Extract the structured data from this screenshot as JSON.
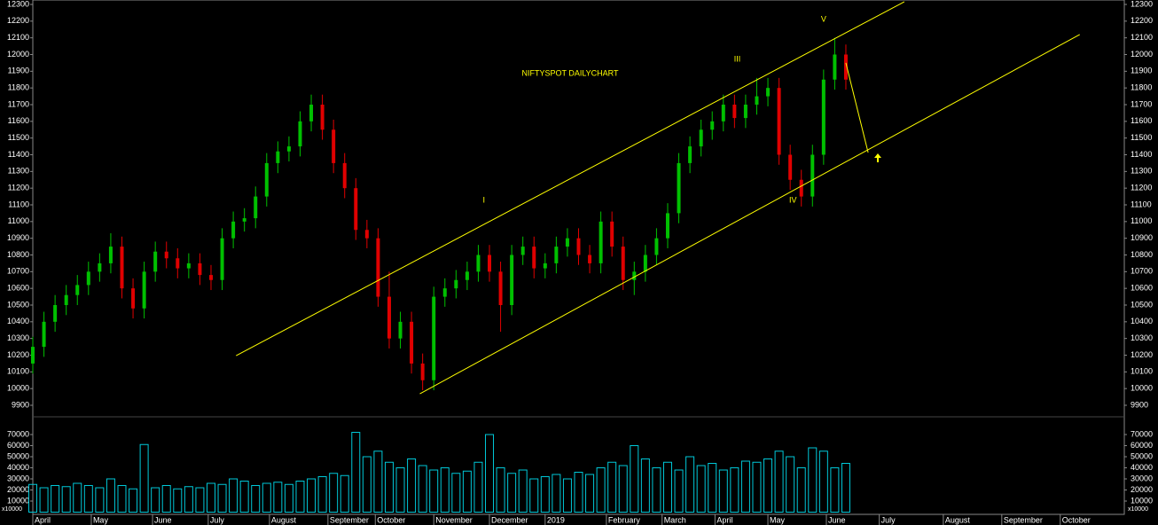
{
  "chart_data": {
    "type": "ohlc",
    "title": "NIFTYSPOT DAILYCHART",
    "x": [
      0,
      4,
      8,
      12,
      16,
      20,
      24,
      28,
      32,
      36,
      40,
      44,
      48,
      52,
      56,
      60,
      64,
      68,
      72,
      76,
      80,
      84,
      88,
      92,
      96,
      100,
      104,
      108,
      112,
      116,
      120,
      124,
      128,
      132,
      136,
      140,
      144,
      148,
      152,
      156,
      160,
      164,
      168,
      172,
      176,
      180,
      184,
      188,
      192,
      196,
      200,
      204,
      208,
      212,
      216,
      220,
      224,
      228,
      232,
      236,
      240,
      244,
      248,
      252,
      256,
      260,
      264,
      268,
      272,
      276,
      280,
      284,
      288,
      292
    ],
    "open": [
      10150,
      10250,
      10400,
      10500,
      10560,
      10620,
      10700,
      10750,
      10850,
      10600,
      10480,
      10700,
      10820,
      10780,
      10720,
      10750,
      10680,
      10650,
      10900,
      11000,
      11020,
      11150,
      11350,
      11420,
      11450,
      11600,
      11700,
      11550,
      11350,
      11200,
      10950,
      10900,
      10550,
      10300,
      10400,
      10150,
      10050,
      10550,
      10600,
      10650,
      10700,
      10800,
      10700,
      10500,
      10800,
      10850,
      10720,
      10750,
      10850,
      10900,
      10800,
      10750,
      11000,
      10850,
      10650,
      10700,
      10800,
      10900,
      11050,
      11350,
      11450,
      11550,
      11600,
      11700,
      11620,
      11700,
      11750,
      11800,
      11400,
      11250,
      11150,
      11400,
      11850,
      12000
    ],
    "high": [
      10310,
      10460,
      10560,
      10620,
      10680,
      10760,
      10810,
      10930,
      10910,
      10660,
      10760,
      10880,
      10880,
      10840,
      10810,
      10810,
      10740,
      10960,
      11060,
      11080,
      11210,
      11410,
      11480,
      11510,
      11660,
      11760,
      11760,
      11610,
      11410,
      11260,
      11010,
      10960,
      10700,
      10460,
      10460,
      10210,
      10610,
      10660,
      10710,
      10760,
      10860,
      10860,
      10760,
      10860,
      10910,
      10910,
      10810,
      10910,
      10960,
      10960,
      10860,
      11060,
      11060,
      10910,
      10760,
      10860,
      10960,
      11110,
      11410,
      11510,
      11610,
      11660,
      11760,
      11760,
      11760,
      11860,
      11860,
      11860,
      11460,
      11310,
      11460,
      11910,
      12100,
      12060
    ],
    "low": [
      10090,
      10190,
      10340,
      10440,
      10500,
      10560,
      10640,
      10690,
      10540,
      10420,
      10420,
      10640,
      10720,
      10660,
      10660,
      10620,
      10590,
      10590,
      10840,
      10940,
      10960,
      11090,
      11290,
      11360,
      11390,
      11540,
      11490,
      11290,
      11140,
      10890,
      10840,
      10490,
      10240,
      10240,
      10090,
      9990,
      9990,
      10490,
      10540,
      10590,
      10640,
      10640,
      10340,
      10440,
      10740,
      10660,
      10660,
      10690,
      10790,
      10740,
      10690,
      10690,
      10790,
      10590,
      10560,
      10640,
      10740,
      10840,
      10990,
      11290,
      11390,
      11490,
      11540,
      11560,
      11560,
      11640,
      11690,
      11340,
      11190,
      11090,
      11090,
      11340,
      11790,
      11790
    ],
    "close": [
      10250,
      10400,
      10500,
      10560,
      10620,
      10700,
      10750,
      10850,
      10600,
      10480,
      10700,
      10820,
      10780,
      10720,
      10750,
      10680,
      10650,
      10900,
      11000,
      11020,
      11150,
      11350,
      11420,
      11450,
      11600,
      11700,
      11550,
      11350,
      11200,
      10950,
      10900,
      10550,
      10300,
      10400,
      10150,
      10050,
      10550,
      10600,
      10650,
      10700,
      10800,
      10700,
      10500,
      10800,
      10850,
      10720,
      10750,
      10850,
      10900,
      10800,
      10750,
      11000,
      10850,
      10650,
      10700,
      10800,
      10900,
      11050,
      11350,
      11450,
      11550,
      11600,
      11700,
      11620,
      11700,
      11750,
      11800,
      11400,
      11250,
      11150,
      11400,
      11850,
      12000,
      11850
    ],
    "volume": [
      25000,
      22000,
      24000,
      23000,
      26000,
      24000,
      22000,
      30000,
      24000,
      21000,
      61000,
      22000,
      24000,
      21000,
      23000,
      22000,
      26000,
      25000,
      30000,
      28000,
      24000,
      26000,
      27000,
      25000,
      28000,
      30000,
      32000,
      35000,
      33000,
      72000,
      50000,
      55000,
      45000,
      40000,
      48000,
      42000,
      38000,
      40000,
      35000,
      37000,
      45000,
      70000,
      40000,
      35000,
      38000,
      30000,
      32000,
      34000,
      30000,
      36000,
      34000,
      40000,
      45000,
      42000,
      60000,
      48000,
      40000,
      45000,
      38000,
      50000,
      42000,
      44000,
      38000,
      40000,
      46000,
      45000,
      48000,
      55000,
      50000,
      40000,
      58000,
      55000,
      40000,
      44000
    ],
    "up_color": "#00c000",
    "down_color": "#e00000",
    "volume_color": "#00c8d8",
    "line_color": "#ffff00",
    "xlim": [
      0,
      392
    ],
    "xticks": [
      {
        "value": 0,
        "label": "April"
      },
      {
        "value": 21,
        "label": "May"
      },
      {
        "value": 43,
        "label": "June"
      },
      {
        "value": 63,
        "label": "July"
      },
      {
        "value": 85,
        "label": "August"
      },
      {
        "value": 106,
        "label": "September"
      },
      {
        "value": 123,
        "label": "October"
      },
      {
        "value": 144,
        "label": "November"
      },
      {
        "value": 164,
        "label": "December"
      },
      {
        "value": 184,
        "label": "2019"
      },
      {
        "value": 206,
        "label": "February"
      },
      {
        "value": 226,
        "label": "March"
      },
      {
        "value": 245,
        "label": "April"
      },
      {
        "value": 264,
        "label": "May"
      },
      {
        "value": 285,
        "label": "June"
      },
      {
        "value": 304,
        "label": "July"
      },
      {
        "value": 327,
        "label": "August"
      },
      {
        "value": 348,
        "label": "September"
      },
      {
        "value": 369,
        "label": "October"
      }
    ],
    "ylim": [
      9900,
      12300
    ],
    "yticks": [
      9900,
      10000,
      10100,
      10200,
      10300,
      10400,
      10500,
      10600,
      10700,
      10800,
      10900,
      11000,
      11100,
      11200,
      11300,
      11400,
      11500,
      11600,
      11700,
      11800,
      11900,
      12000,
      12100,
      12200,
      12300
    ],
    "volume_ylim": [
      0,
      70000
    ],
    "volume_yticks": [
      10000,
      20000,
      30000,
      40000,
      50000,
      60000,
      70000
    ],
    "volume_unit": "x10000",
    "lines": [
      {
        "x": [
          73,
          313
        ],
        "y": [
          10197,
          12316
        ]
      },
      {
        "x": [
          139,
          376
        ],
        "y": [
          9969,
          12120
        ]
      },
      {
        "x": [
          292,
          300
        ],
        "y": [
          11950,
          11413
        ]
      }
    ],
    "annotations": [
      {
        "text": "I",
        "x": 162,
        "y": 11125
      },
      {
        "text": "III",
        "x": 253,
        "y": 11970
      },
      {
        "text": "IV",
        "x": 273,
        "y": 11125
      },
      {
        "text": "V",
        "x": 284,
        "y": 12210
      }
    ]
  }
}
